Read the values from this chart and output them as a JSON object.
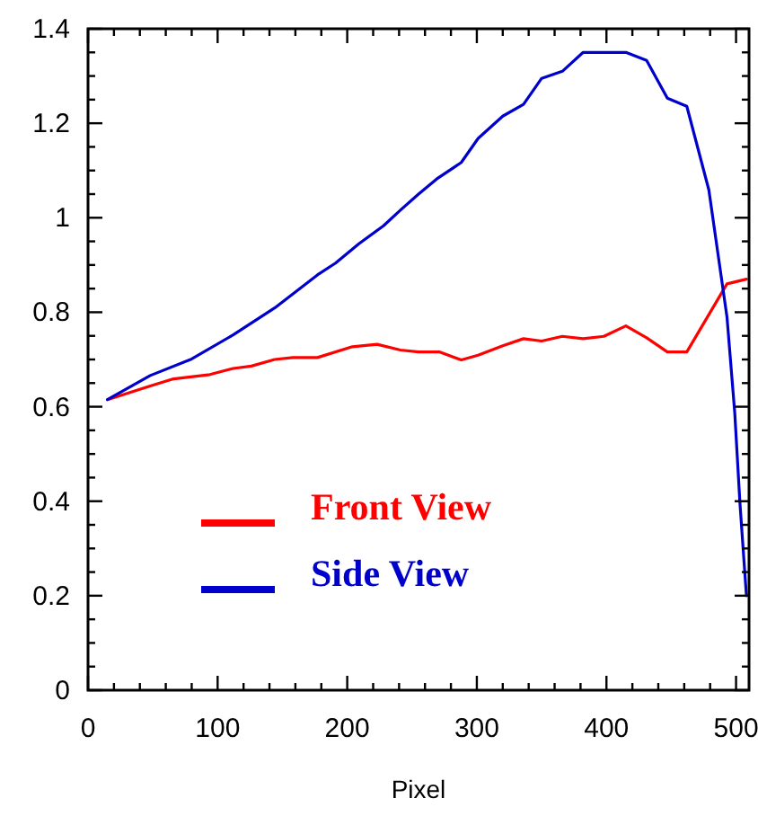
{
  "chart_data": {
    "type": "line",
    "xlabel": "Pixel",
    "xlim": [
      0,
      510
    ],
    "ylim": [
      0,
      1.4
    ],
    "xticks": [
      0,
      {
        "value": 20,
        "label": null
      },
      {
        "value": 40,
        "label": null
      },
      {
        "value": 60,
        "label": null
      },
      {
        "value": 80,
        "label": null
      },
      100,
      {
        "value": 120,
        "label": null
      },
      {
        "value": 140,
        "label": null
      },
      {
        "value": 160,
        "label": null
      },
      {
        "value": 180,
        "label": null
      },
      200,
      {
        "value": 220,
        "label": null
      },
      {
        "value": 240,
        "label": null
      },
      {
        "value": 260,
        "label": null
      },
      {
        "value": 280,
        "label": null
      },
      300,
      {
        "value": 320,
        "label": null
      },
      {
        "value": 340,
        "label": null
      },
      {
        "value": 360,
        "label": null
      },
      {
        "value": 380,
        "label": null
      },
      400,
      {
        "value": 420,
        "label": null
      },
      {
        "value": 440,
        "label": null
      },
      {
        "value": 460,
        "label": null
      },
      {
        "value": 480,
        "label": null
      },
      500
    ],
    "yticks": [
      0,
      {
        "value": 0.05,
        "label": null
      },
      {
        "value": 0.1,
        "label": null
      },
      {
        "value": 0.15,
        "label": null
      },
      0.2,
      {
        "value": 0.25,
        "label": null
      },
      {
        "value": 0.3,
        "label": null
      },
      {
        "value": 0.35,
        "label": null
      },
      0.4,
      {
        "value": 0.45,
        "label": null
      },
      {
        "value": 0.5,
        "label": null
      },
      {
        "value": 0.55,
        "label": null
      },
      0.6,
      {
        "value": 0.65,
        "label": null
      },
      {
        "value": 0.7,
        "label": null
      },
      {
        "value": 0.75,
        "label": null
      },
      0.8,
      {
        "value": 0.85,
        "label": null
      },
      {
        "value": 0.9,
        "label": null
      },
      {
        "value": 0.95,
        "label": null
      },
      1,
      {
        "value": 1.05,
        "label": null
      },
      {
        "value": 1.1,
        "label": null
      },
      {
        "value": 1.15,
        "label": null
      },
      1.2,
      {
        "value": 1.25,
        "label": null
      },
      {
        "value": 1.3,
        "label": null
      },
      {
        "value": 1.35,
        "label": null
      },
      1.4
    ],
    "grid": false,
    "legend": "bottom left",
    "marker": "none",
    "line_style": "solid",
    "series": [
      {
        "name": "Front View",
        "color": "#ff0000",
        "x": [
          15,
          48,
          66,
          94,
          112,
          126,
          144,
          158,
          177,
          204,
          223,
          241,
          255,
          271,
          288,
          301,
          320,
          336,
          350,
          366,
          382,
          398,
          415,
          431,
          447,
          462,
          493,
          508
        ],
        "values": [
          0.615,
          0.644,
          0.659,
          0.668,
          0.681,
          0.686,
          0.7,
          0.704,
          0.704,
          0.727,
          0.732,
          0.72,
          0.716,
          0.716,
          0.699,
          0.709,
          0.729,
          0.744,
          0.739,
          0.749,
          0.744,
          0.749,
          0.771,
          0.746,
          0.716,
          0.716,
          0.86,
          0.87
        ]
      },
      {
        "name": "Side View",
        "color": "#0000cc",
        "x": [
          15,
          48,
          80,
          112,
          144,
          177,
          191,
          209,
          228,
          241,
          255,
          269,
          288,
          301,
          320,
          336,
          350,
          366,
          382,
          415,
          431,
          447,
          462,
          479,
          493,
          499,
          503,
          508
        ],
        "values": [
          0.615,
          0.666,
          0.701,
          0.752,
          0.809,
          0.879,
          0.904,
          0.945,
          0.983,
          1.016,
          1.05,
          1.082,
          1.117,
          1.168,
          1.215,
          1.24,
          1.295,
          1.31,
          1.35,
          1.35,
          1.333,
          1.253,
          1.236,
          1.059,
          0.79,
          0.587,
          0.396,
          0.2
        ]
      }
    ]
  }
}
